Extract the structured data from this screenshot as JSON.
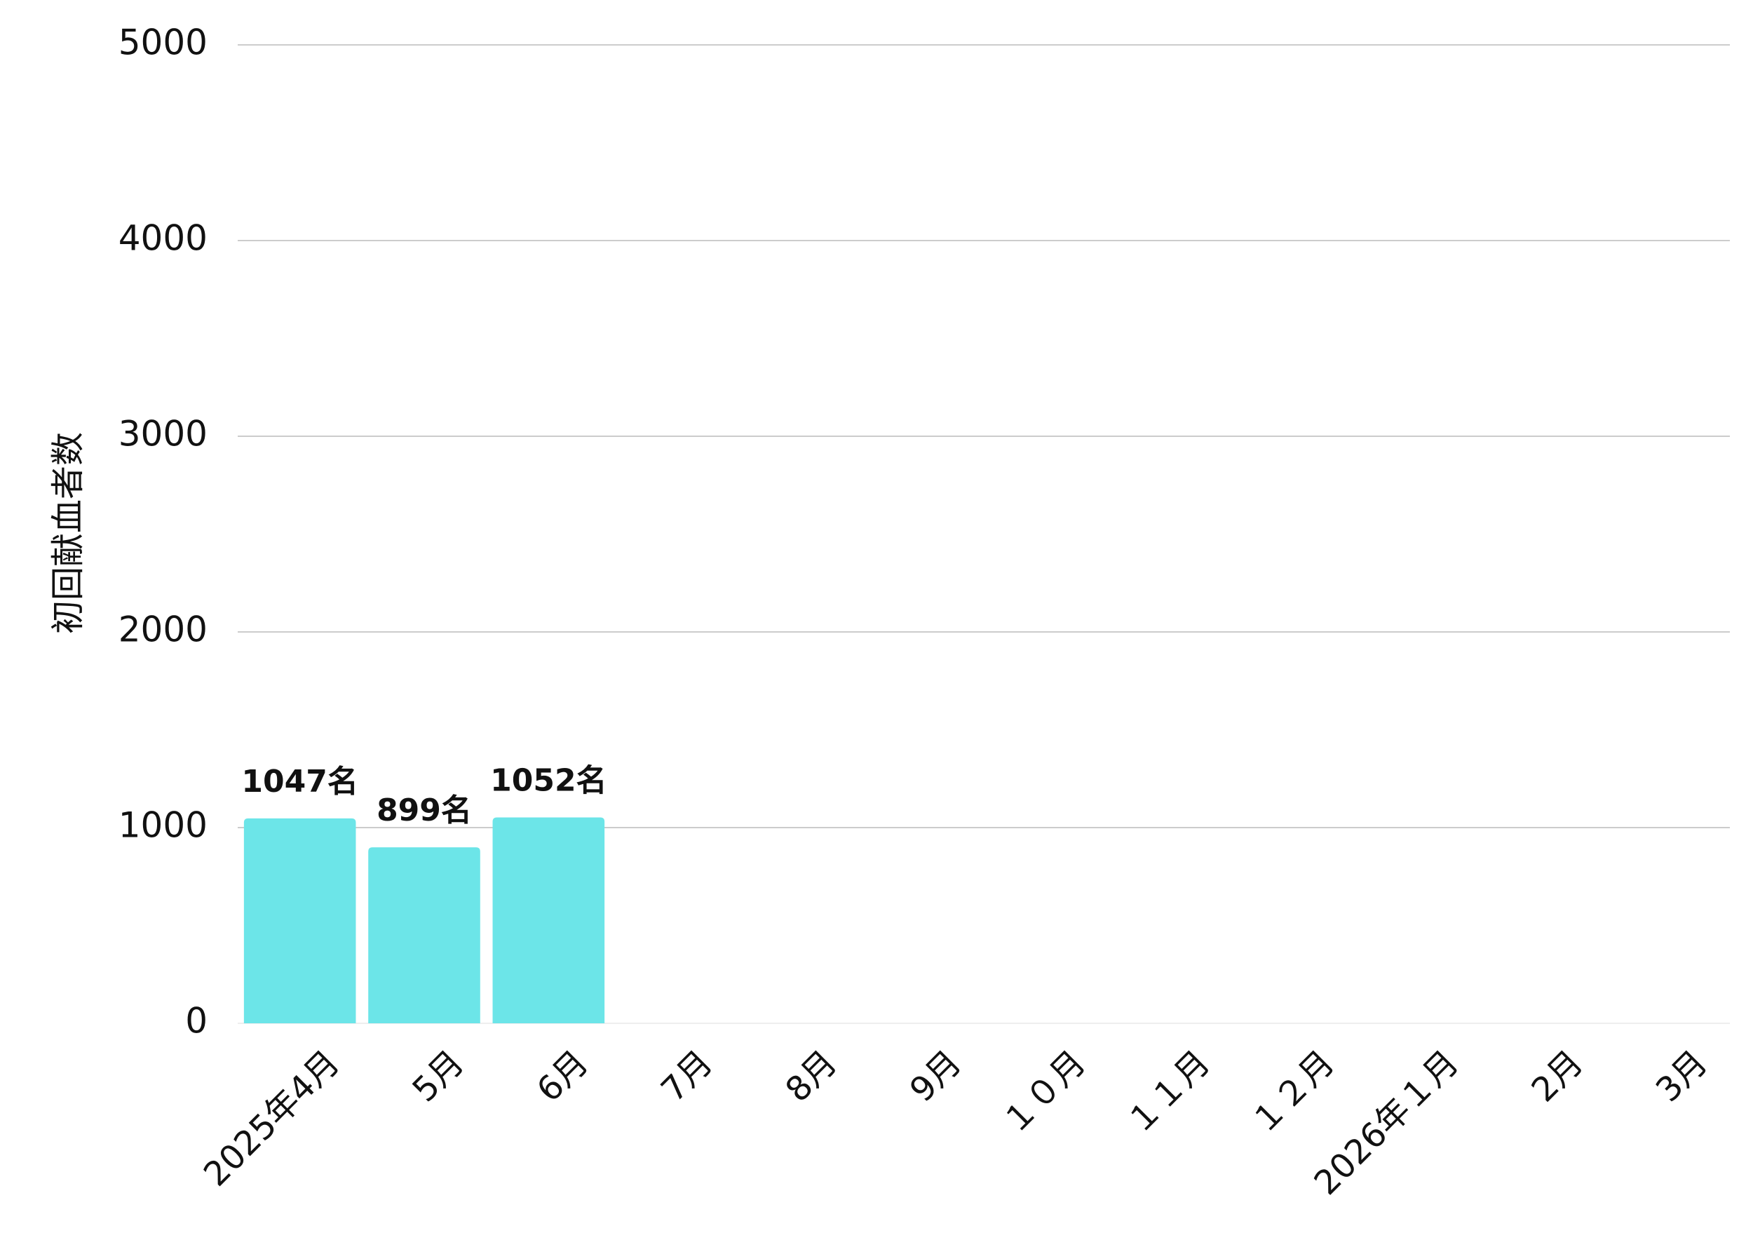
{
  "chart_data": {
    "type": "bar",
    "y_label": "初回献血者数",
    "categories": [
      "2025年4月",
      "5月",
      "6月",
      "7月",
      "8月",
      "9月",
      "１０月",
      "１１月",
      "１２月",
      "2026年１月",
      "2月",
      "3月"
    ],
    "values": [
      1047,
      899,
      1052,
      null,
      null,
      null,
      null,
      null,
      null,
      null,
      null,
      null
    ],
    "value_labels": [
      "1047名",
      "899名",
      "1052名",
      null,
      null,
      null,
      null,
      null,
      null,
      null,
      null,
      null
    ],
    "color": "#6ce5e8",
    "ylim": [
      0,
      5000
    ],
    "yticks": [
      0,
      1000,
      2000,
      3000,
      4000,
      5000
    ],
    "grid": true
  }
}
